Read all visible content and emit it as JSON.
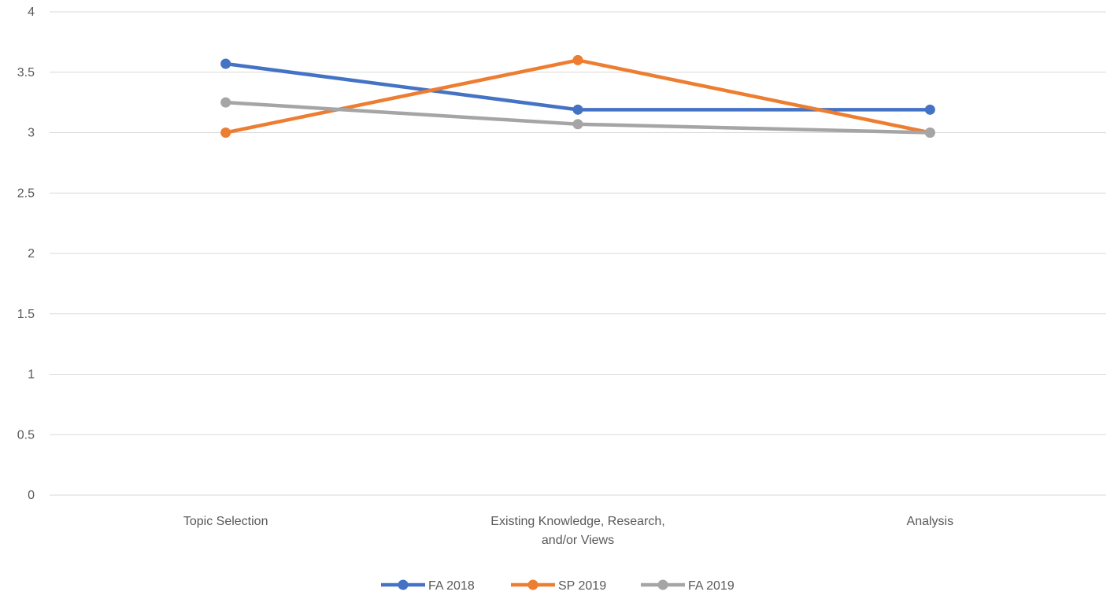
{
  "chart_data": {
    "type": "line",
    "categories": [
      [
        "Topic Selection"
      ],
      [
        "Existing Knowledge, Research,",
        "and/or Views"
      ],
      [
        "Analysis"
      ]
    ],
    "series": [
      {
        "name": "FA 2018",
        "color": "#4472C4",
        "values": [
          3.57,
          3.19,
          3.19
        ]
      },
      {
        "name": "SP 2019",
        "color": "#ED7D31",
        "values": [
          3.0,
          3.6,
          3.0
        ]
      },
      {
        "name": "FA 2019",
        "color": "#A5A5A5",
        "values": [
          3.25,
          3.07,
          3.0
        ]
      }
    ],
    "yticks": [
      "0",
      "0.5",
      "1",
      "1.5",
      "2",
      "2.5",
      "3",
      "3.5",
      "4"
    ],
    "ylim": [
      0,
      4
    ],
    "grid": true,
    "legend": "bottom"
  }
}
